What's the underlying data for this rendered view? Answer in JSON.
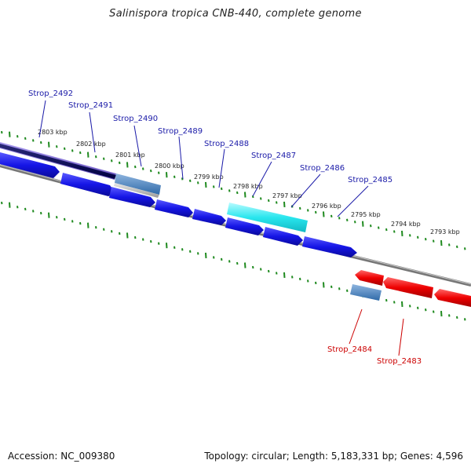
{
  "title": "Salinispora tropica CNB-440, complete genome",
  "footer": {
    "accession": "Accession: NC_009380",
    "summary": "Topology: circular; Length: 5,183,331 bp; Genes: 4,596"
  },
  "scale_labels": [
    "2803 kbp",
    "2802 kbp",
    "2801 kbp",
    "2800 kbp",
    "2799 kbp",
    "2798 kbp",
    "2797 kbp",
    "2796 kbp",
    "2795 kbp",
    "2794 kbp",
    "2793 kbp"
  ],
  "gene_labels_forward": [
    "Strop_2492",
    "Strop_2491",
    "Strop_2490",
    "Strop_2489",
    "Strop_2488",
    "Strop_2487",
    "Strop_2486",
    "Strop_2485"
  ],
  "gene_labels_reverse": [
    "Strop_2484",
    "Strop_2483"
  ],
  "colors": {
    "forward_label": "#1a1aa8",
    "reverse_label": "#cc0000",
    "forward_gene": "#1515e6",
    "reverse_gene": "#ee0000",
    "ruler": "#1f8a1f",
    "backbone": "#7a7a7a",
    "highlight_cyan": "#29e6ee",
    "purple_feature": "#7a66cc",
    "steelblue_feature": "#4f86c0"
  }
}
